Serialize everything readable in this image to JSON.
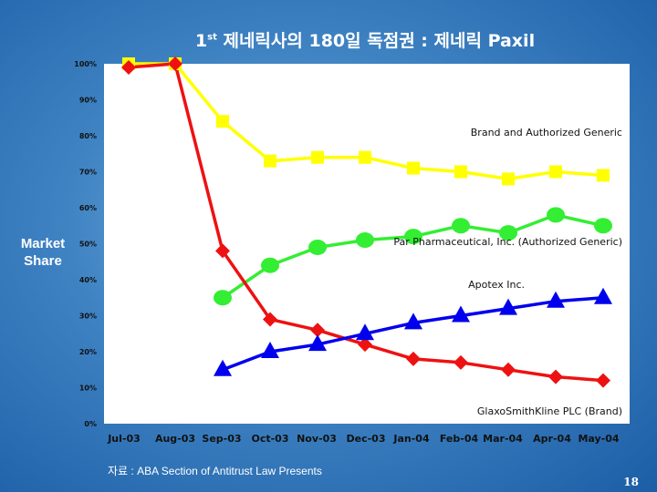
{
  "title": {
    "prefix": "1",
    "sup": "st",
    "main": " 제네릭사의 180일 독점권 : 제네릭 Paxil"
  },
  "source": "자료 : ABA Section of Antitrust Law Presents",
  "page_number": "18",
  "chart_data": {
    "type": "line",
    "ylabel_line1": "Market",
    "ylabel_line2": "Share",
    "ylim": [
      0,
      100
    ],
    "yticks": [
      "0%",
      "10%",
      "20%",
      "30%",
      "40%",
      "50%",
      "60%",
      "70%",
      "80%",
      "90%",
      "100%"
    ],
    "categories": [
      "Jul-03",
      "Aug-03",
      "Sep-03",
      "Oct-03",
      "Nov-03",
      "Dec-03",
      "Jan-04",
      "Feb-04",
      "Mar-04",
      "Apr-04",
      "May-04"
    ],
    "grid": false,
    "series": [
      {
        "name": "Brand and Authorized Generic",
        "color": "#ffff00",
        "marker": "square",
        "values": [
          100,
          100,
          84,
          73,
          74,
          74,
          71,
          70,
          68,
          70,
          69
        ]
      },
      {
        "name": "Par Pharmaceutical, Inc. (Authorized Generic)",
        "color": "#33ee33",
        "marker": "circle",
        "values": [
          null,
          null,
          35,
          44,
          49,
          51,
          52,
          55,
          53,
          58,
          55
        ]
      },
      {
        "name": "Apotex Inc.",
        "color": "#ee1111",
        "marker": "diamond",
        "values": [
          99,
          100,
          48,
          29,
          26,
          22,
          18,
          17,
          15,
          13,
          12
        ]
      },
      {
        "name": "GlaxoSmithKline PLC (Brand)",
        "color": "#0000ee",
        "marker": "triangle",
        "values": [
          null,
          null,
          15,
          20,
          22,
          25,
          28,
          30,
          32,
          34,
          35
        ]
      }
    ]
  }
}
